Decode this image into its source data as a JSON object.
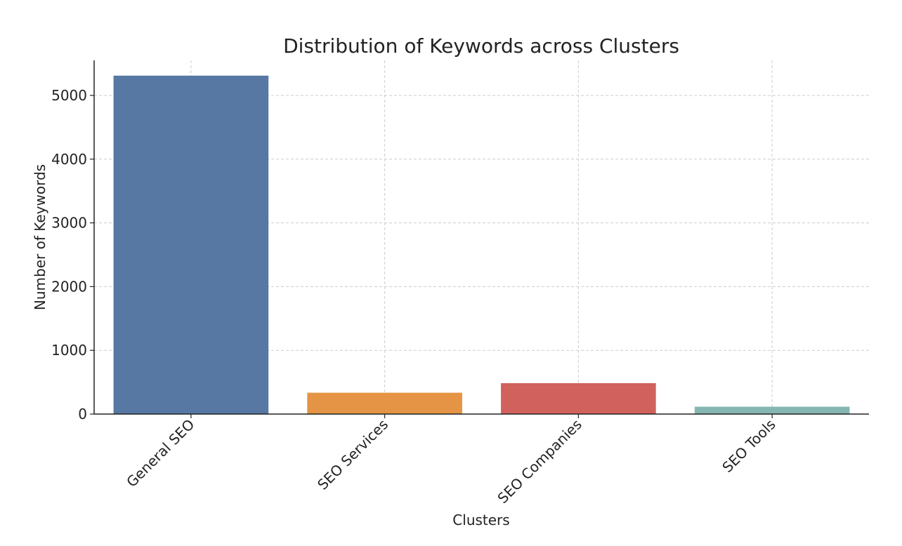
{
  "chart_data": {
    "type": "bar",
    "title": "Distribution of Keywords across Clusters",
    "xlabel": "Clusters",
    "ylabel": "Number of Keywords",
    "categories": [
      "General SEO",
      "SEO Services",
      "SEO Companies",
      "SEO Tools"
    ],
    "values": [
      5310,
      335,
      485,
      115
    ],
    "colors": [
      "#5778a3",
      "#e49444",
      "#d1615d",
      "#85b6b2"
    ],
    "ylim": [
      0,
      5550
    ],
    "yticks": [
      0,
      1000,
      2000,
      3000,
      4000,
      5000
    ],
    "grid": true,
    "legend": "none"
  }
}
